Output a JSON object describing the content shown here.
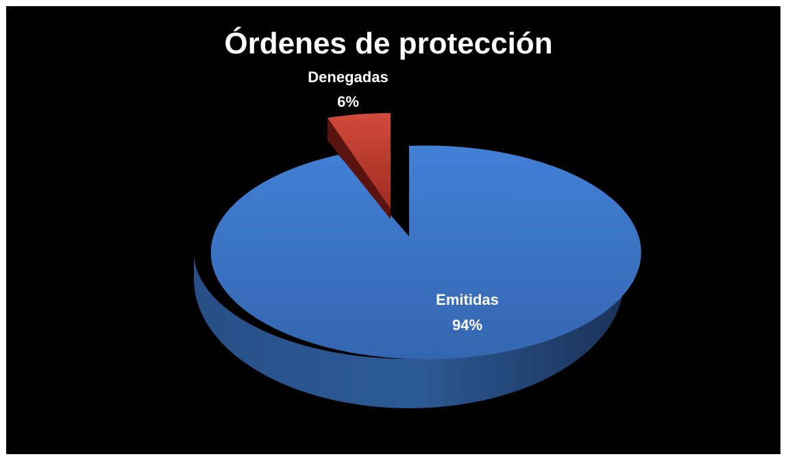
{
  "chart_data": {
    "type": "pie",
    "title": "Órdenes de protección",
    "slices": [
      {
        "category": "Emitidas",
        "percent_label": "94%",
        "value": 94,
        "color": "#3a74c4",
        "exploded": false
      },
      {
        "category": "Denegadas",
        "percent_label": "6%",
        "value": 6,
        "color": "#c0392b",
        "exploded": true
      }
    ],
    "style": "3d",
    "background": "#000000",
    "legend": "none"
  }
}
